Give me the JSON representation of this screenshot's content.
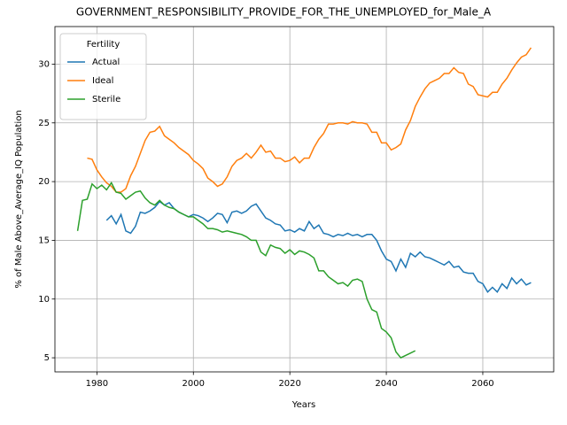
{
  "chart_data": {
    "type": "line",
    "title": "GOVERNMENT_RESPONSIBILITY_PROVIDE_FOR_THE_UNEMPLOYED_for_Male_A",
    "xlabel": "Years",
    "ylabel": "% of Male Above_Average_IQ Population",
    "legend_title": "Fertility",
    "legend": "upper left",
    "grid": true,
    "x": [
      1976,
      1977,
      1978,
      1979,
      1980,
      1981,
      1982,
      1983,
      1984,
      1985,
      1986,
      1987,
      1988,
      1989,
      1990,
      1991,
      1992,
      1993,
      1994,
      1995,
      1996,
      1997,
      1998,
      1999,
      2000,
      2001,
      2002,
      2003,
      2004,
      2005,
      2006,
      2007,
      2008,
      2009,
      2010,
      2011,
      2012,
      2013,
      2014,
      2015,
      2016,
      2017,
      2018,
      2019,
      2020,
      2021,
      2022,
      2023,
      2024,
      2025,
      2026,
      2027,
      2028,
      2029,
      2030,
      2031,
      2032,
      2033,
      2034,
      2035,
      2036,
      2037,
      2038,
      2039,
      2040,
      2041,
      2042,
      2043,
      2044,
      2045,
      2046,
      2047,
      2048,
      2049,
      2050,
      2051,
      2052,
      2053,
      2054,
      2055,
      2056,
      2057,
      2058,
      2059,
      2060,
      2061,
      2062,
      2063,
      2064,
      2065,
      2066,
      2067,
      2068,
      2069,
      2070
    ],
    "series": [
      {
        "name": "Actual",
        "color": "#1f77b4",
        "values": [
          null,
          null,
          null,
          null,
          null,
          null,
          16.7,
          17.1,
          16.4,
          17.2,
          15.8,
          15.6,
          16.2,
          17.4,
          17.3,
          17.5,
          17.8,
          18.3,
          18.0,
          18.2,
          17.7,
          17.4,
          17.2,
          17.0,
          17.2,
          17.1,
          16.9,
          16.6,
          16.9,
          17.3,
          17.2,
          16.5,
          17.4,
          17.5,
          17.3,
          17.5,
          17.9,
          18.1,
          17.5,
          16.9,
          16.7,
          16.4,
          16.3,
          15.8,
          15.9,
          15.7,
          16.0,
          15.8,
          16.6,
          16.0,
          16.3,
          15.6,
          15.5,
          15.3,
          15.5,
          15.4,
          15.6,
          15.4,
          15.5,
          15.3,
          15.5,
          15.5,
          15.0,
          14.1,
          13.4,
          13.2,
          12.4,
          13.4,
          12.7,
          13.9,
          13.6,
          14.0,
          13.6,
          13.5,
          13.3,
          13.1,
          12.9,
          13.2,
          12.7,
          12.8,
          12.3,
          12.2,
          12.2,
          11.5,
          11.3,
          10.6,
          11.0,
          10.6,
          11.3,
          10.9,
          11.8,
          11.3,
          11.7,
          11.2,
          11.4
        ]
      },
      {
        "name": "Ideal",
        "color": "#ff7f0e",
        "values": [
          null,
          null,
          22.0,
          21.9,
          21.0,
          20.4,
          19.9,
          19.6,
          19.1,
          19.1,
          19.4,
          20.5,
          21.3,
          22.4,
          23.5,
          24.2,
          24.3,
          24.7,
          23.9,
          23.6,
          23.3,
          22.9,
          22.6,
          22.3,
          21.8,
          21.5,
          21.1,
          20.3,
          20.0,
          19.6,
          19.8,
          20.4,
          21.3,
          21.8,
          22.0,
          22.4,
          22.0,
          22.5,
          23.1,
          22.5,
          22.6,
          22.0,
          22.0,
          21.7,
          21.8,
          22.1,
          21.6,
          22.0,
          22.0,
          22.9,
          23.6,
          24.1,
          24.9,
          24.9,
          25.0,
          25.0,
          24.9,
          25.1,
          25.0,
          25.0,
          24.9,
          24.2,
          24.2,
          23.3,
          23.3,
          22.7,
          22.9,
          23.2,
          24.4,
          25.2,
          26.4,
          27.2,
          27.9,
          28.4,
          28.6,
          28.8,
          29.2,
          29.2,
          29.7,
          29.3,
          29.2,
          28.3,
          28.1,
          27.4,
          27.3,
          27.2,
          27.6,
          27.6,
          28.3,
          28.8,
          29.5,
          30.1,
          30.6,
          30.8,
          31.4
        ]
      },
      {
        "name": "Sterile",
        "color": "#2ca02c",
        "values": [
          15.8,
          18.4,
          18.5,
          19.8,
          19.4,
          19.7,
          19.3,
          19.9,
          19.1,
          19.0,
          18.5,
          18.8,
          19.1,
          19.2,
          18.6,
          18.2,
          18.0,
          18.4,
          18.0,
          17.8,
          17.7,
          17.4,
          17.2,
          17.0,
          17.0,
          16.7,
          16.4,
          16.0,
          16.0,
          15.9,
          15.7,
          15.8,
          15.7,
          15.6,
          15.5,
          15.3,
          15.0,
          15.0,
          14.0,
          13.7,
          14.6,
          14.4,
          14.3,
          13.9,
          14.2,
          13.8,
          14.1,
          14.0,
          13.8,
          13.5,
          12.4,
          12.4,
          11.9,
          11.6,
          11.3,
          11.4,
          11.1,
          11.6,
          11.7,
          11.5,
          10.0,
          9.1,
          8.9,
          7.5,
          7.2,
          6.7,
          5.5,
          5.0,
          5.2,
          5.4,
          5.6,
          null,
          null,
          null,
          null,
          null,
          null,
          null,
          null,
          null,
          null,
          null,
          null,
          null,
          null,
          null,
          null,
          null,
          null,
          null,
          null,
          null,
          null,
          null,
          null
        ]
      }
    ],
    "xlim": [
      1971.3,
      2074.7
    ],
    "xticks": [
      1980,
      2000,
      2020,
      2040,
      2060
    ],
    "ylim": [
      3.8,
      33.2
    ],
    "yticks": [
      5,
      10,
      15,
      20,
      25,
      30
    ]
  }
}
